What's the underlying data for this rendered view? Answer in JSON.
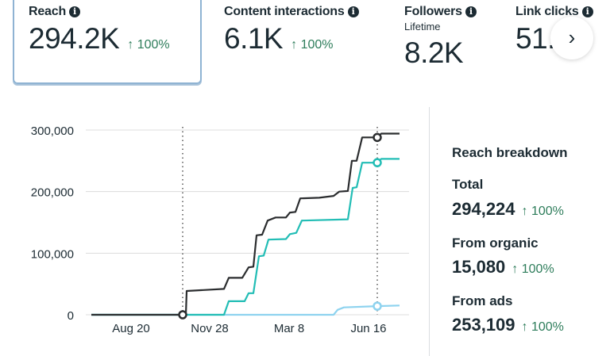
{
  "metrics": [
    {
      "title": "Reach",
      "value": "294.2K",
      "delta": "↑ 100%",
      "selected": true
    },
    {
      "title": "Content interactions",
      "value": "6.1K",
      "delta": "↑ 100%"
    },
    {
      "title": "Followers",
      "subtitle": "Lifetime",
      "value": "8.2K"
    },
    {
      "title": "Link clicks",
      "value": "51."
    }
  ],
  "next_button": "›",
  "info_icon": "i",
  "breakdown": {
    "title": "Reach breakdown",
    "rows": [
      {
        "label": "Total",
        "value": "294,224",
        "delta": "↑ 100%"
      },
      {
        "label": "From organic",
        "value": "15,080",
        "delta": "↑ 100%"
      },
      {
        "label": "From ads",
        "value": "253,109",
        "delta": "↑ 100%"
      }
    ]
  },
  "colors": {
    "total": "#2b2d2f",
    "ads": "#22bdb5",
    "organic": "#8ed3ef",
    "delta": "#2e7d5b"
  },
  "chart_data": {
    "type": "line",
    "x_unit": "days after Aug 20",
    "xlim": [
      -50,
      338
    ],
    "ylim": [
      0,
      300000
    ],
    "yticks": [
      0,
      100000,
      200000,
      300000
    ],
    "ytick_labels": [
      "0",
      "100,000",
      "200,000",
      "300,000"
    ],
    "xticks": [
      0,
      99,
      199,
      299
    ],
    "xtick_labels": [
      "Aug 20",
      "Nov 28",
      "Mar 8",
      "Jun 16"
    ],
    "markers_at": [
      65,
      310
    ],
    "series": [
      {
        "name": "Total",
        "color": "#2b2d2f",
        "points": [
          [
            -50,
            0
          ],
          [
            65,
            0
          ],
          [
            69,
            0
          ],
          [
            70,
            38600
          ],
          [
            117,
            42000
          ],
          [
            123,
            60000
          ],
          [
            140,
            60000
          ],
          [
            148,
            77000
          ],
          [
            154,
            78000
          ],
          [
            158,
            129000
          ],
          [
            165,
            130000
          ],
          [
            172,
            153000
          ],
          [
            182,
            158000
          ],
          [
            195,
            158000
          ],
          [
            200,
            166000
          ],
          [
            207,
            167000
          ],
          [
            213,
            189000
          ],
          [
            237,
            190000
          ],
          [
            255,
            193000
          ],
          [
            262,
            200000
          ],
          [
            273,
            201000
          ],
          [
            278,
            250000
          ],
          [
            284,
            250000
          ],
          [
            291,
            288000
          ],
          [
            310,
            288000
          ],
          [
            315,
            294224
          ],
          [
            338,
            294224
          ]
        ]
      },
      {
        "name": "From ads",
        "color": "#22bdb5",
        "points": [
          [
            -50,
            0
          ],
          [
            117,
            0
          ],
          [
            123,
            22000
          ],
          [
            143,
            22000
          ],
          [
            148,
            35000
          ],
          [
            154,
            35000
          ],
          [
            161,
            95000
          ],
          [
            167,
            96000
          ],
          [
            173,
            122000
          ],
          [
            195,
            123000
          ],
          [
            200,
            131000
          ],
          [
            208,
            133000
          ],
          [
            215,
            153000
          ],
          [
            273,
            155000
          ],
          [
            279,
            206000
          ],
          [
            284,
            207000
          ],
          [
            291,
            247000
          ],
          [
            310,
            247000
          ],
          [
            315,
            253109
          ],
          [
            338,
            253109
          ]
        ]
      },
      {
        "name": "From organic",
        "color": "#8ed3ef",
        "points": [
          [
            -50,
            0
          ],
          [
            255,
            0
          ],
          [
            260,
            8000
          ],
          [
            268,
            12000
          ],
          [
            310,
            14000
          ],
          [
            338,
            15080
          ]
        ]
      }
    ]
  }
}
